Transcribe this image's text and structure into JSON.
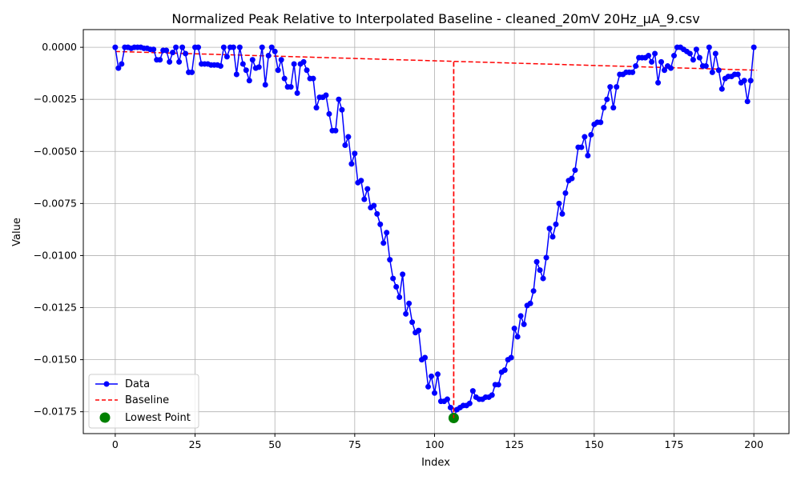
{
  "chart_data": {
    "type": "line",
    "title": "Normalized Peak Relative to Interpolated Baseline - cleaned_20mV 20Hz_μA_9.csv",
    "xlabel": "Index",
    "ylabel": "Value",
    "xlim": [
      -10,
      211
    ],
    "ylim": [
      -0.01855,
      0.00085
    ],
    "xticks": [
      0,
      25,
      50,
      75,
      100,
      125,
      150,
      175,
      200
    ],
    "yticks": [
      0.0,
      -0.0025,
      -0.005,
      -0.0075,
      -0.01,
      -0.0125,
      -0.015,
      -0.0175
    ],
    "xtick_labels": [
      "0",
      "25",
      "50",
      "75",
      "100",
      "125",
      "150",
      "175",
      "200"
    ],
    "ytick_labels": [
      "0.0000",
      "−0.0025",
      "−0.0050",
      "−0.0075",
      "−0.0100",
      "−0.0125",
      "−0.0150",
      "−0.0175"
    ],
    "grid": true,
    "legend_position": "lower-left",
    "series": [
      {
        "name": "Data",
        "style": "line-with-markers",
        "color": "#0000ff",
        "values": [
          0.0,
          -0.001,
          -0.0008,
          0.0,
          0.0,
          -5e-05,
          0.0,
          0.0,
          0.0,
          -5e-05,
          -5e-05,
          -0.0001,
          -0.0001,
          -0.0006,
          -0.0006,
          -0.00015,
          -0.00015,
          -0.0007,
          -0.00025,
          0.0,
          -0.0007,
          0.0,
          -0.0003,
          -0.0012,
          -0.0012,
          0.0,
          0.0,
          -0.0008,
          -0.0008,
          -0.0008,
          -0.00085,
          -0.00085,
          -0.00085,
          -0.0009,
          0.0,
          -0.00045,
          0.0,
          0.0,
          -0.0013,
          0.0,
          -0.0008,
          -0.0011,
          -0.0016,
          -0.0006,
          -0.001,
          -0.00095,
          0.0,
          -0.0018,
          -0.0004,
          0.0,
          -0.0002,
          -0.0011,
          -0.0006,
          -0.0015,
          -0.0019,
          -0.0019,
          -0.0008,
          -0.0022,
          -0.0008,
          -0.0007,
          -0.0011,
          -0.0015,
          -0.0015,
          -0.0029,
          -0.0024,
          -0.0024,
          -0.0023,
          -0.0032,
          -0.004,
          -0.004,
          -0.0025,
          -0.003,
          -0.0047,
          -0.0043,
          -0.0056,
          -0.0051,
          -0.0065,
          -0.0064,
          -0.0073,
          -0.0068,
          -0.0077,
          -0.0076,
          -0.008,
          -0.0085,
          -0.0094,
          -0.0089,
          -0.0102,
          -0.0111,
          -0.0115,
          -0.012,
          -0.0109,
          -0.0128,
          -0.0123,
          -0.0132,
          -0.0137,
          -0.0136,
          -0.015,
          -0.0149,
          -0.0163,
          -0.0158,
          -0.0166,
          -0.0157,
          -0.017,
          -0.017,
          -0.0169,
          -0.0173,
          -0.0178,
          -0.0174,
          -0.0173,
          -0.0172,
          -0.0172,
          -0.0171,
          -0.0165,
          -0.0168,
          -0.0169,
          -0.0169,
          -0.0168,
          -0.0168,
          -0.0167,
          -0.0162,
          -0.0162,
          -0.0156,
          -0.0155,
          -0.015,
          -0.0149,
          -0.0135,
          -0.0139,
          -0.0129,
          -0.0133,
          -0.0124,
          -0.0123,
          -0.0117,
          -0.0103,
          -0.0107,
          -0.0111,
          -0.0101,
          -0.0087,
          -0.0091,
          -0.0085,
          -0.0075,
          -0.008,
          -0.007,
          -0.0064,
          -0.0063,
          -0.0059,
          -0.0048,
          -0.0048,
          -0.0043,
          -0.0052,
          -0.0042,
          -0.0037,
          -0.0036,
          -0.0036,
          -0.0029,
          -0.0025,
          -0.0019,
          -0.0029,
          -0.0019,
          -0.0013,
          -0.0013,
          -0.0012,
          -0.0012,
          -0.0012,
          -0.0009,
          -0.0005,
          -0.0005,
          -0.0005,
          -0.0004,
          -0.0007,
          -0.0003,
          -0.0017,
          -0.0007,
          -0.0011,
          -0.0009,
          -0.001,
          -0.0004,
          0.0,
          0.0,
          -0.0001,
          -0.0002,
          -0.0003,
          -0.0006,
          -0.0001,
          -0.0005,
          -0.0009,
          -0.0009,
          0.0,
          -0.0012,
          -0.0003,
          -0.0011,
          -0.002,
          -0.0015,
          -0.0014,
          -0.0014,
          -0.0013,
          -0.0013,
          -0.0017,
          -0.0016,
          -0.0026,
          -0.0016,
          0.0
        ]
      },
      {
        "name": "Baseline",
        "style": "dashed",
        "color": "#ff0000",
        "segments": [
          {
            "x": [
              0,
              201
            ],
            "y": [
              -0.0002,
              -0.0011
            ]
          },
          {
            "x": [
              106,
              106
            ],
            "y": [
              -0.0007,
              -0.0178
            ]
          }
        ]
      },
      {
        "name": "Lowest Point",
        "style": "scatter",
        "color": "#008000",
        "x": [
          106
        ],
        "y": [
          -0.0178
        ]
      }
    ]
  }
}
